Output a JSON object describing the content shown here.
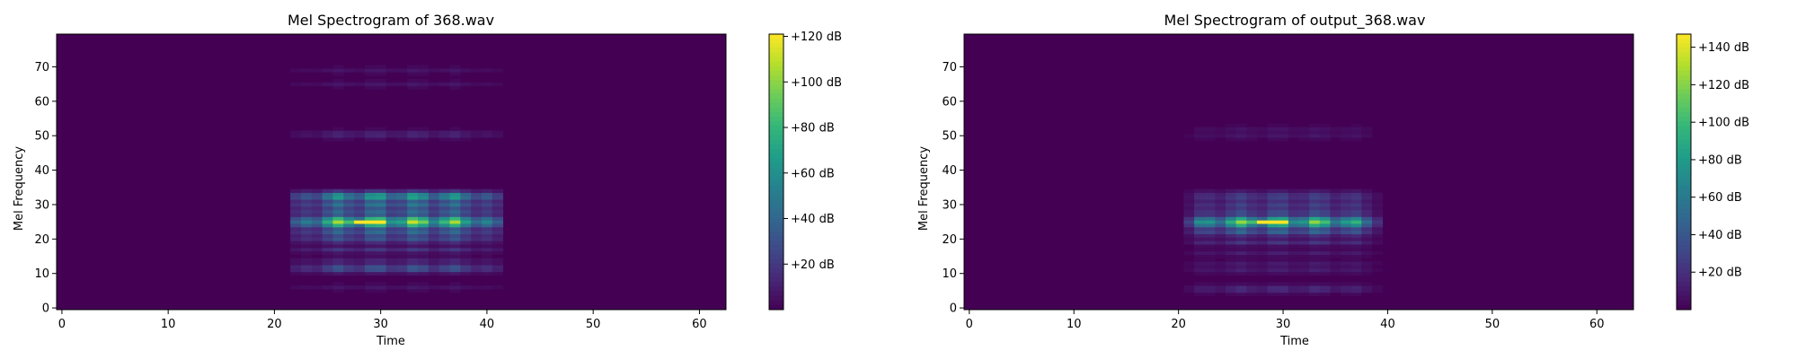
{
  "chart_data": [
    {
      "type": "heatmap",
      "title": "Mel Spectrogram of 368.wav",
      "xlabel": "Time",
      "ylabel": "Mel Frequency",
      "xlim": [
        -0.5,
        62.5
      ],
      "ylim": [
        -0.5,
        79.5
      ],
      "xticks": [
        0,
        10,
        20,
        30,
        40,
        50,
        60
      ],
      "yticks": [
        0,
        10,
        20,
        30,
        40,
        50,
        60,
        70
      ],
      "colorbar": {
        "min": 0,
        "max": 121,
        "ticks": [
          20,
          40,
          60,
          80,
          100,
          120
        ],
        "tick_labels": [
          "+20 dB",
          "+40 dB",
          "+60 dB",
          "+80 dB",
          "+100 dB",
          "+120 dB"
        ]
      },
      "active_time_range": [
        21,
        42
      ],
      "bands": [
        {
          "mel": 6,
          "value": 8
        },
        {
          "mel": 11,
          "value": 22
        },
        {
          "mel": 12,
          "value": 26
        },
        {
          "mel": 14,
          "value": 14
        },
        {
          "mel": 17,
          "value": 22
        },
        {
          "mel": 20,
          "value": 30
        },
        {
          "mel": 22,
          "value": 40
        },
        {
          "mel": 24,
          "value": 52
        },
        {
          "mel": 25,
          "value": 70
        },
        {
          "mel": 26,
          "value": 56
        },
        {
          "mel": 28,
          "value": 40
        },
        {
          "mel": 30,
          "value": 46
        },
        {
          "mel": 32,
          "value": 50
        },
        {
          "mel": 33,
          "value": 42
        },
        {
          "mel": 50,
          "value": 10
        },
        {
          "mel": 51,
          "value": 8
        },
        {
          "mel": 65,
          "value": 8
        },
        {
          "mel": 69,
          "value": 8
        }
      ],
      "peak": {
        "time_range": [
          27,
          30
        ],
        "mel": 25,
        "value": 121
      }
    },
    {
      "type": "heatmap",
      "title": "Mel Spectrogram of output_368.wav",
      "xlabel": "Time",
      "ylabel": "Mel Frequency",
      "xlim": [
        -0.5,
        63.5
      ],
      "ylim": [
        -0.5,
        79.5
      ],
      "xticks": [
        0,
        10,
        20,
        30,
        40,
        50,
        60
      ],
      "yticks": [
        0,
        10,
        20,
        30,
        40,
        50,
        60,
        70
      ],
      "colorbar": {
        "min": 0,
        "max": 147,
        "ticks": [
          20,
          40,
          60,
          80,
          100,
          120,
          140
        ],
        "tick_labels": [
          "+20 dB",
          "+40 dB",
          "+60 dB",
          "+80 dB",
          "+100 dB",
          "+120 dB",
          "+140 dB"
        ]
      },
      "active_time_range": [
        20,
        40
      ],
      "bands": [
        {
          "mel": 5,
          "value": 12
        },
        {
          "mel": 6,
          "value": 14
        },
        {
          "mel": 11,
          "value": 14
        },
        {
          "mel": 13,
          "value": 12
        },
        {
          "mel": 16,
          "value": 14
        },
        {
          "mel": 19,
          "value": 20
        },
        {
          "mel": 22,
          "value": 46
        },
        {
          "mel": 24,
          "value": 60
        },
        {
          "mel": 25,
          "value": 80
        },
        {
          "mel": 26,
          "value": 56
        },
        {
          "mel": 28,
          "value": 30
        },
        {
          "mel": 30,
          "value": 26
        },
        {
          "mel": 32,
          "value": 20
        },
        {
          "mel": 33,
          "value": 14
        },
        {
          "mel": 50,
          "value": 10
        },
        {
          "mel": 52,
          "value": 8
        }
      ],
      "peak": {
        "time_range": [
          27,
          30
        ],
        "mel": 25,
        "value": 147
      }
    }
  ]
}
